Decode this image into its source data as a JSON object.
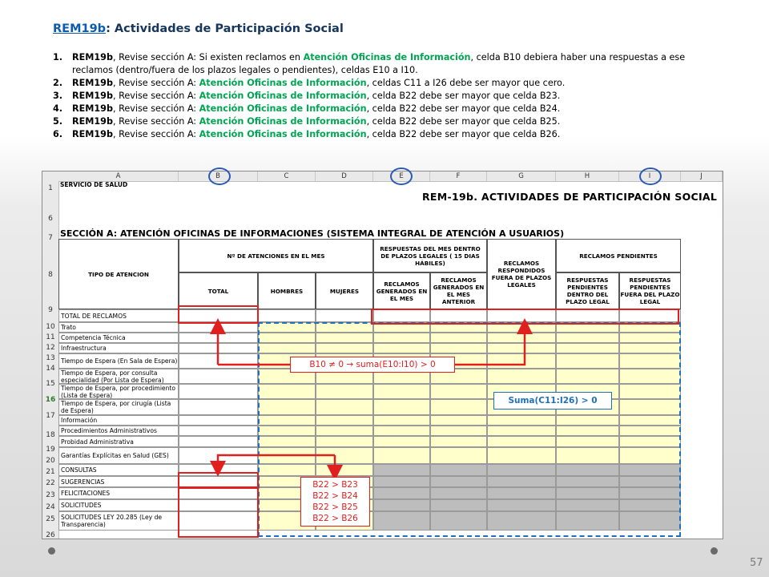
{
  "title": {
    "code": "REM19b",
    "rest": ": Actividades de Participación Social"
  },
  "rules": [
    {
      "num": "1.",
      "pre": "REM19b",
      "a": ", Revise sección A: Si existen reclamos en ",
      "hl": "Atención Oficinas de Información",
      "b": ", celda B10 debiera haber una respuestas a ese reclamos (dentro/fuera de los plazos legales o pendientes), celdas E10 a I10."
    },
    {
      "num": "2.",
      "pre": "REM19b",
      "a": ", Revise sección A: ",
      "hl": "Atención Oficinas de Información",
      "b": ", celdas C11 a I26 debe ser mayor que cero."
    },
    {
      "num": "3.",
      "pre": "REM19b",
      "a": ", Revise sección A: ",
      "hl": "Atención Oficinas de Información",
      "b": ", celda B22 debe ser mayor que celda B23."
    },
    {
      "num": "4.",
      "pre": "REM19b",
      "a": ", Revise sección A: ",
      "hl": "Atención Oficinas de Información",
      "b": ", celda B22 debe ser mayor que celda B24."
    },
    {
      "num": "5.",
      "pre": "REM19b",
      "a": ", Revise sección A: ",
      "hl": "Atención Oficinas de Información",
      "b": ", celda B22 debe ser mayor que celda B25."
    },
    {
      "num": "6.",
      "pre": "REM19b",
      "a": ", Revise sección A: ",
      "hl": "Atención Oficinas de Información",
      "b": ", celda B22 debe ser mayor que celda B26."
    }
  ],
  "sheet": {
    "columns": [
      "A",
      "B",
      "C",
      "D",
      "E",
      "F",
      "G",
      "H",
      "I",
      "J"
    ],
    "service_row": "SERVICIO DE SALUD",
    "title": "REM-19b.   ACTIVIDADES DE PARTICIPACIÓN SOCIAL",
    "section": "SECCIÓN A: ATENCIÓN OFICINAS DE INFORMACIONES (SISTEMA INTEGRAL DE ATENCIÓN A USUARIOS)",
    "headers": {
      "tipo": "TIPO DE ATENCION",
      "atenciones": "Nº DE ATENCIONES EN EL MES",
      "total": "TOTAL",
      "hombres": "HOMBRES",
      "mujeres": "MUJERES",
      "respuestas": "RESPUESTAS DEL MES DENTRO DE PLAZOS LEGALES ( 15 DIAS HÁBILES)",
      "generados_mes": "RECLAMOS GENERADOS EN EL MES",
      "generados_ant": "RECLAMOS GENERADOS EN EL MES ANTERIOR",
      "fuera_plazo": "RECLAMOS RESPONDIDOS FUERA DE PLAZOS LEGALES",
      "pendientes": "RECLAMOS PENDIENTES",
      "pend_dentro": "RESPUESTAS PENDIENTES DENTRO DEL PLAZO LEGAL",
      "pend_fuera": "RESPUESTAS PENDIENTES FUERA DEL PLAZO LEGAL"
    },
    "rownums": [
      "1",
      "6",
      "7",
      "8",
      "9",
      "10",
      "11",
      "12",
      "13",
      "14",
      "15",
      "16",
      "17",
      "18",
      "19",
      "20",
      "21",
      "22",
      "23",
      "24",
      "25",
      "26"
    ],
    "row_labels": [
      "TOTAL DE RECLAMOS",
      "Trato",
      "Competencia Técnica",
      "Infraestructura",
      "Tiempo de Espera (En Sala de Espera)",
      "Tiempo de Espera, por consulta especialidad (Por Lista de Espera)",
      "Tiempo de Espera, por procedimiento (Lista de Espera)",
      "Tiempo de Espera, por cirugía (Lista de Espera)",
      "Información",
      "Procedimientos Administrativos",
      "Probidad Administrativa",
      "Garantías Explícitas en Salud (GES)",
      "CONSULTAS",
      "SUGERENCIAS",
      "FELICITACIONES",
      "SOLICITUDES",
      "SOLICITUDES LEY 20.285 (Ley de Transparencia)"
    ]
  },
  "annotations": {
    "rule1": "B10 ≠ 0 → suma(E10:I10) > 0",
    "rule2": "Suma(C11:I26) > 0",
    "rule3": [
      "B22 > B23",
      "B22 > B24",
      "B22 > B25",
      "B22 > B26"
    ]
  },
  "page_number": "57",
  "colors": {
    "highlight_green": "#00a651",
    "annotation_red": "#e01f1f",
    "annotation_blue": "#1f6fc0",
    "input_yellow": "#ffffcc"
  }
}
